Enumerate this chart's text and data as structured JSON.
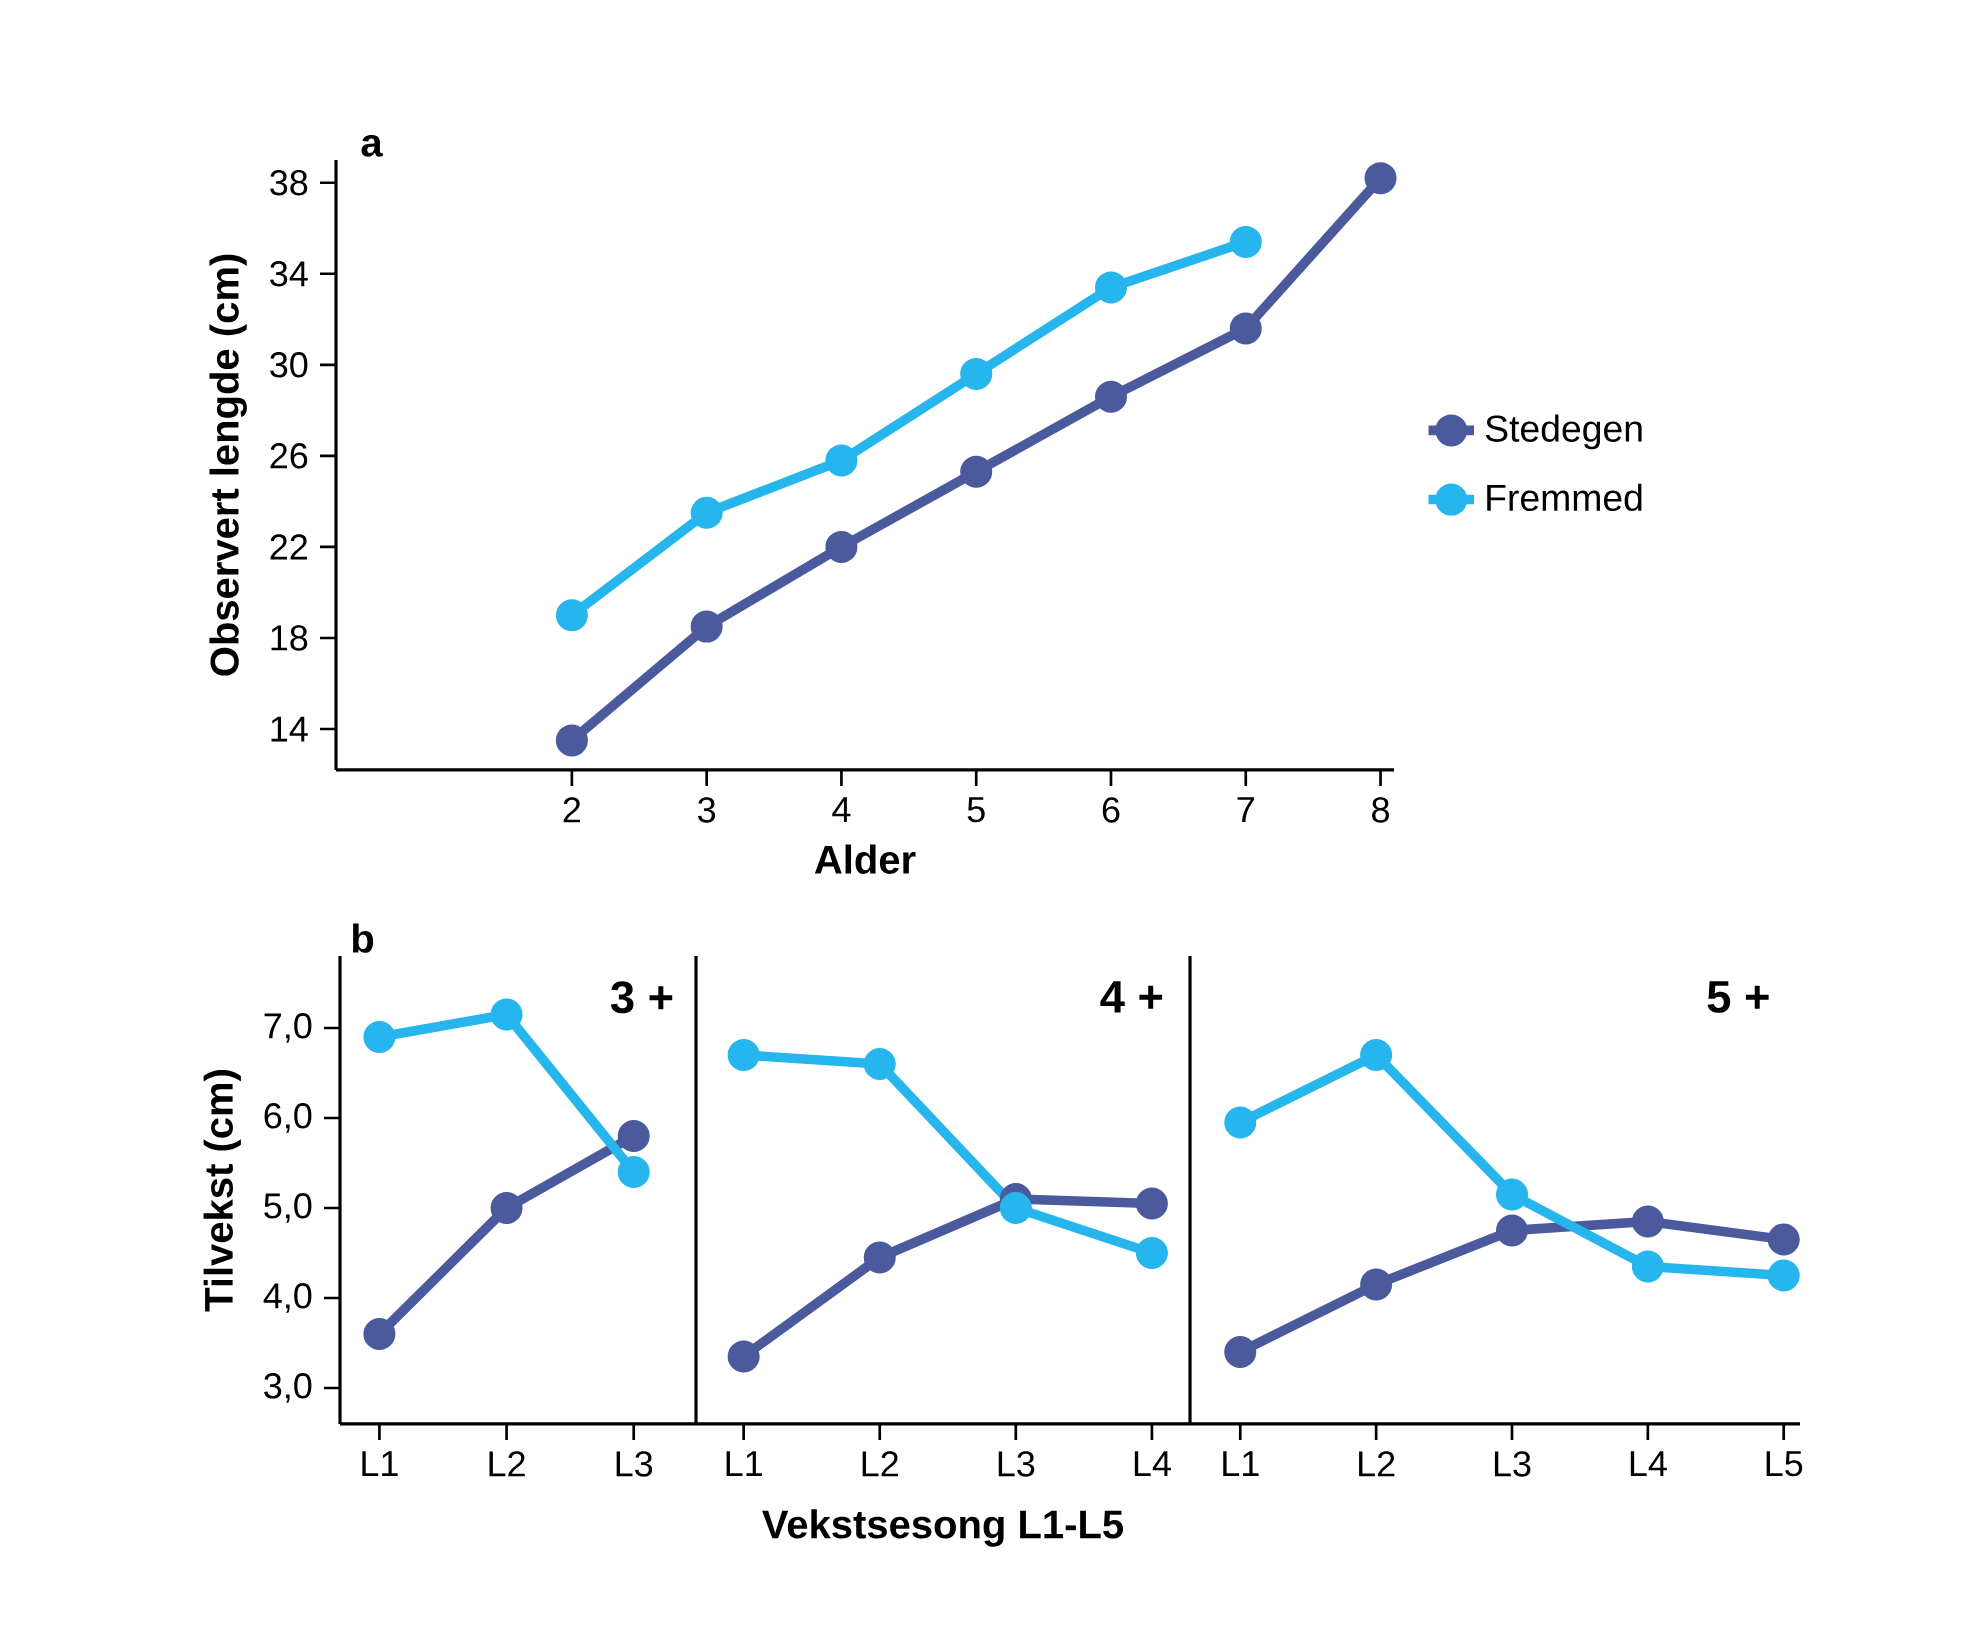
{
  "chart_data": [
    {
      "type": "line",
      "title": "a",
      "xlabel": "Alder",
      "ylabel": "Observert lengde (cm)",
      "x": [
        2,
        3,
        4,
        5,
        6,
        7,
        8
      ],
      "series": [
        {
          "name": "Stedegen",
          "color": "#4b5a9c",
          "values": [
            13.5,
            18.5,
            22,
            25.3,
            28.6,
            31.6,
            38.2
          ]
        },
        {
          "name": "Fremmed",
          "color": "#26b5ec",
          "values": [
            19,
            23.5,
            25.8,
            29.6,
            33.4,
            35.4,
            null
          ]
        }
      ],
      "xlim": [
        0.25,
        8.1
      ],
      "ylim": [
        12.2,
        39
      ],
      "xticks": [
        2,
        3,
        4,
        5,
        6,
        7,
        8
      ],
      "yticks": [
        14,
        18,
        22,
        26,
        30,
        34,
        38
      ],
      "legend": "right",
      "marker": "circle"
    },
    {
      "type": "line",
      "title": "b",
      "ylabel": "Tilvekst (cm)",
      "categories": [
        "L1",
        "L2",
        "L3"
      ],
      "series": [
        {
          "color": "#4b5a9c",
          "values": [
            3.6,
            5.0,
            5.8
          ]
        },
        {
          "color": "#26b5ec",
          "values": [
            6.9,
            7.15,
            5.4
          ]
        }
      ],
      "ylim": [
        2.6,
        7.8
      ],
      "yticks": [
        {
          "value": 3,
          "label": "3,0"
        },
        {
          "value": 4,
          "label": "4,0"
        },
        {
          "value": 5,
          "label": "5,0"
        },
        {
          "value": 6,
          "label": "6,0"
        },
        {
          "value": 7,
          "label": "7,0"
        }
      ],
      "annotations": [
        "3 +"
      ],
      "marker": "circle"
    },
    {
      "type": "line",
      "xlabel": "Vekstsesong L1-L5",
      "categories": [
        "L1",
        "L2",
        "L3",
        "L4"
      ],
      "series": [
        {
          "color": "#4b5a9c",
          "values": [
            3.35,
            4.45,
            5.1,
            5.05
          ]
        },
        {
          "color": "#26b5ec",
          "values": [
            6.7,
            6.6,
            5.0,
            4.5
          ]
        }
      ],
      "ylim": [
        2.6,
        7.8
      ],
      "tick_labels": "x",
      "annotations": [
        "4 +"
      ],
      "marker": "circle"
    },
    {
      "type": "line",
      "categories": [
        "L1",
        "L2",
        "L3",
        "L4",
        "L5"
      ],
      "series": [
        {
          "color": "#4b5a9c",
          "values": [
            3.4,
            4.15,
            4.75,
            4.85,
            4.65
          ]
        },
        {
          "color": "#26b5ec",
          "values": [
            5.95,
            6.7,
            5.15,
            4.35,
            4.25
          ]
        }
      ],
      "ylim": [
        2.6,
        7.8
      ],
      "tick_labels": "x",
      "annotations": [
        "5 +"
      ],
      "marker": "circle"
    }
  ]
}
